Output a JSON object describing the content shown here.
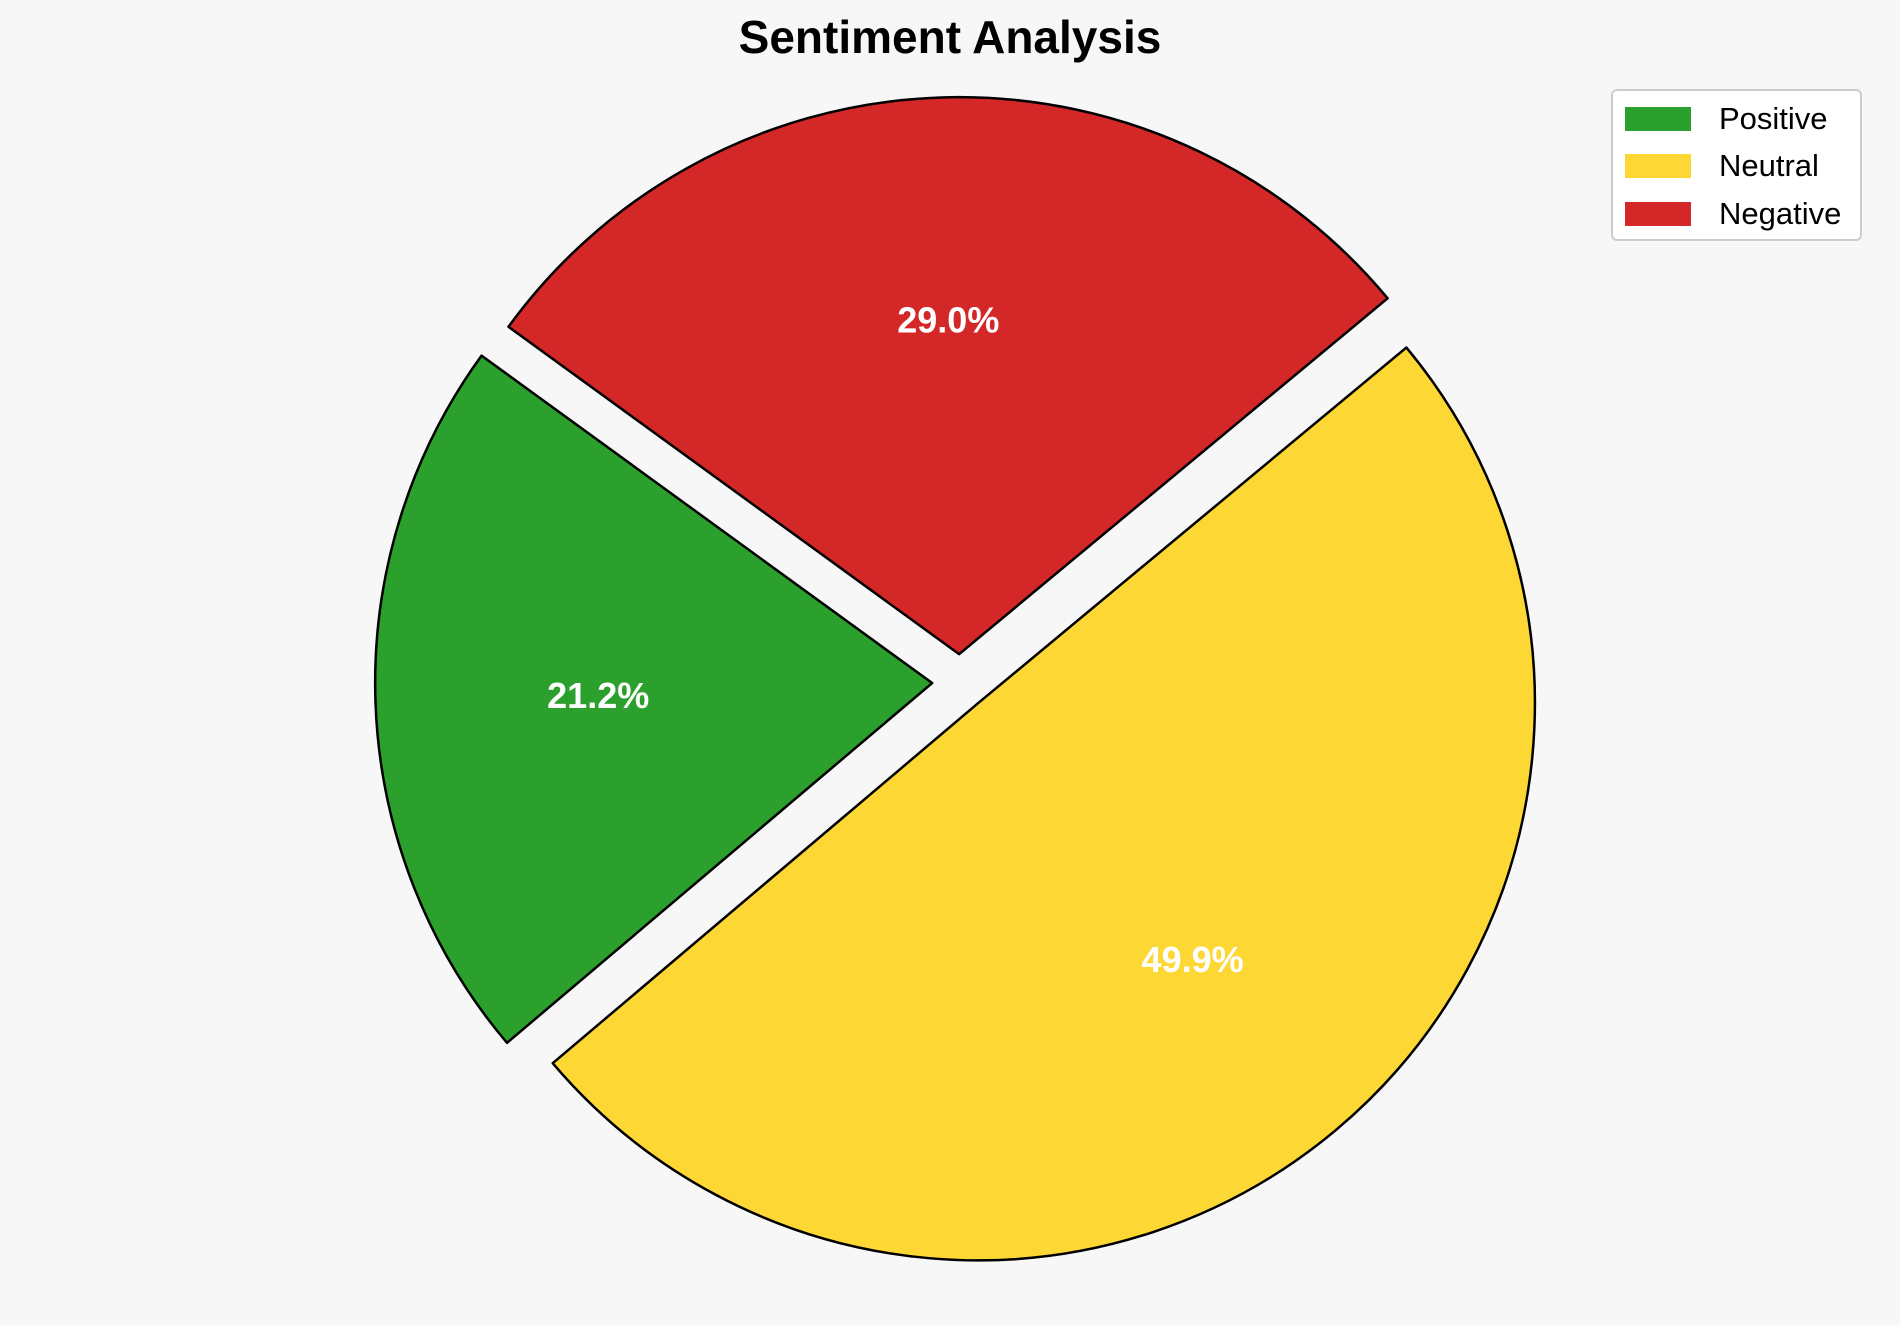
{
  "chart_data": {
    "type": "pie",
    "title": "Sentiment Analysis",
    "categories": [
      "Positive",
      "Neutral",
      "Negative"
    ],
    "values": [
      21.2,
      49.9,
      29.0
    ],
    "labels": [
      "21.2%",
      "49.9%",
      "29.0%"
    ],
    "colors": [
      "#2ca02c",
      "#fdd835",
      "#d32728"
    ],
    "exploded": true,
    "legend_position": "top-right"
  }
}
